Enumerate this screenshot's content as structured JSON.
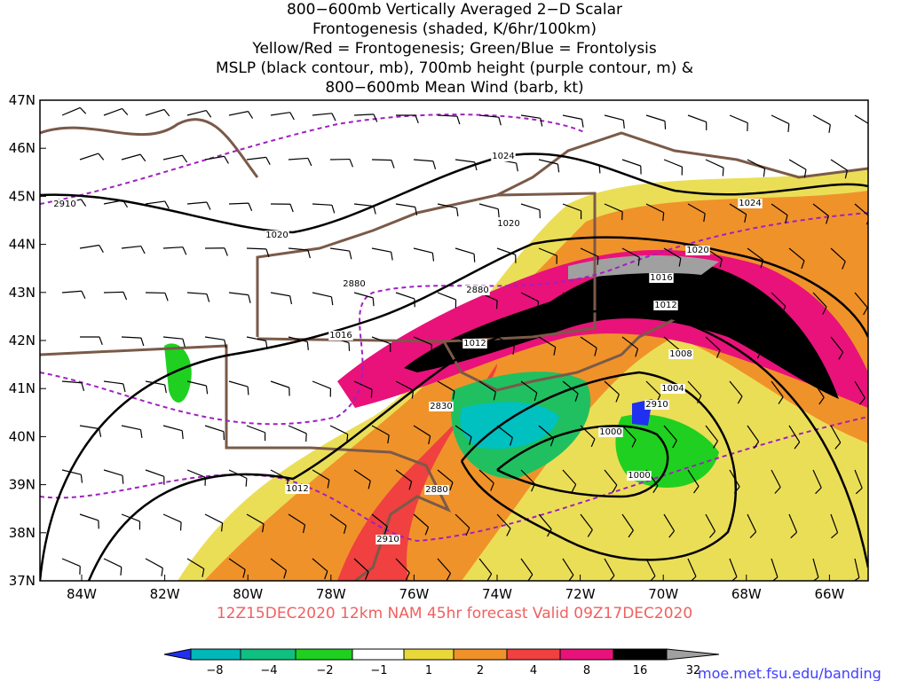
{
  "title": {
    "lines": [
      "800−600mb Vertically Averaged 2−D Scalar",
      "Frontogenesis (shaded, K/6hr/100km)",
      "Yellow/Red = Frontogenesis;  Green/Blue = Frontolysis",
      "MSLP (black contour, mb), 700mb height (purple contour, m) &",
      "800−600mb Mean Wind (barb, kt)"
    ]
  },
  "map": {
    "lat_labels": [
      "47N",
      "46N",
      "45N",
      "44N",
      "43N",
      "42N",
      "41N",
      "40N",
      "39N",
      "38N",
      "37N"
    ],
    "lon_labels": [
      "84W",
      "82W",
      "80W",
      "78W",
      "76W",
      "74W",
      "72W",
      "70W",
      "68W",
      "66W"
    ],
    "contour_labels": [
      "1024",
      "1020",
      "1020",
      "2880",
      "2880",
      "1016",
      "1012",
      "1024",
      "1020",
      "1016",
      "1012",
      "1008",
      "1004",
      "2910",
      "1000",
      "1000",
      "2830",
      "2880",
      "1012",
      "2910",
      "2910"
    ]
  },
  "footer": "12Z15DEC2020 12km NAM 45hr forecast Valid 09Z17DEC2020",
  "colorbar": {
    "labels": [
      "−8",
      "−4",
      "−2",
      "−1",
      "1",
      "2",
      "4",
      "8",
      "16",
      "32"
    ]
  },
  "site": "moe.met.fsu.edu/banding"
}
